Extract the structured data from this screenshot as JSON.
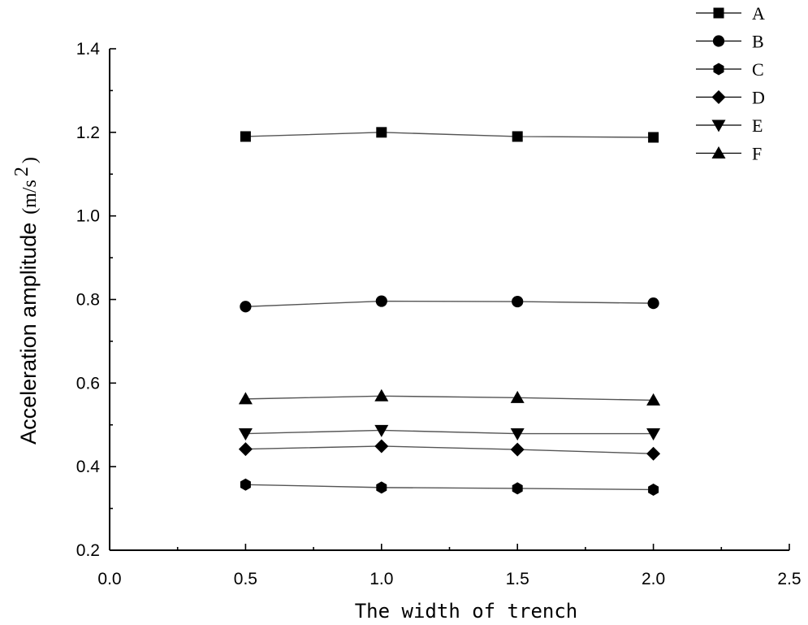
{
  "chart_data": {
    "type": "line",
    "xlabel": "The width of trench",
    "ylabel": "Acceleration amplitude",
    "ylabel_unit": "(m/s",
    "ylabel_unit_sup": "2",
    "ylabel_unit_close": ")",
    "xlim": [
      0.0,
      2.5
    ],
    "ylim": [
      0.2,
      1.4
    ],
    "x_ticks": [
      "0.0",
      "0.5",
      "1.0",
      "1.5",
      "2.0",
      "2.5"
    ],
    "y_ticks": [
      "0.2",
      "0.4",
      "0.6",
      "0.8",
      "1.0",
      "1.2",
      "1.4"
    ],
    "grid": false,
    "legend_position": "top-right",
    "x": [
      0.5,
      1.0,
      1.5,
      2.0
    ],
    "series": [
      {
        "name": "A",
        "marker": "square",
        "values": [
          1.19,
          1.2,
          1.19,
          1.188
        ]
      },
      {
        "name": "B",
        "marker": "circle",
        "values": [
          0.783,
          0.796,
          0.795,
          0.791
        ]
      },
      {
        "name": "C",
        "marker": "hexagon",
        "values": [
          0.357,
          0.35,
          0.348,
          0.345
        ]
      },
      {
        "name": "D",
        "marker": "diamond",
        "values": [
          0.442,
          0.449,
          0.441,
          0.431
        ]
      },
      {
        "name": "E",
        "marker": "triangle-down",
        "values": [
          0.479,
          0.487,
          0.479,
          0.479
        ]
      },
      {
        "name": "F",
        "marker": "triangle-up",
        "values": [
          0.562,
          0.569,
          0.565,
          0.559
        ]
      }
    ],
    "colors": {
      "marker": "#000000",
      "line": "#555555",
      "axis": "#000000"
    }
  }
}
